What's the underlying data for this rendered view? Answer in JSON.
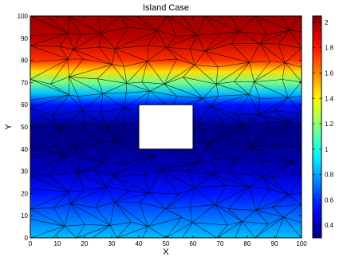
{
  "chart_data": {
    "type": "heatmap",
    "title": "Island Case",
    "xlabel": "X",
    "ylabel": "Y",
    "xlim": [
      0,
      100
    ],
    "ylim": [
      0,
      100
    ],
    "xticks": [
      "0",
      "10",
      "20",
      "30",
      "40",
      "50",
      "60",
      "70",
      "80",
      "90",
      "100"
    ],
    "yticks": [
      "0",
      "10",
      "20",
      "30",
      "40",
      "50",
      "60",
      "70",
      "80",
      "90",
      "100"
    ],
    "colorbar": {
      "range": [
        0.3,
        2.05
      ],
      "ticks": [
        "0.4",
        "0.6",
        "0.8",
        "1",
        "1.2",
        "1.4",
        "1.6",
        "1.8",
        "2"
      ],
      "colormap": "jet"
    },
    "hole": {
      "x": [
        40,
        60
      ],
      "y": [
        40,
        60
      ]
    },
    "profile_y": [
      0,
      10,
      20,
      30,
      40,
      50,
      60,
      65,
      70,
      75,
      80,
      90,
      100
    ],
    "profile_value": [
      0.85,
      0.7,
      0.55,
      0.42,
      0.34,
      0.32,
      0.55,
      0.85,
      1.15,
      1.45,
      1.75,
      1.95,
      2.0
    ],
    "mesh_color": "#000000"
  }
}
